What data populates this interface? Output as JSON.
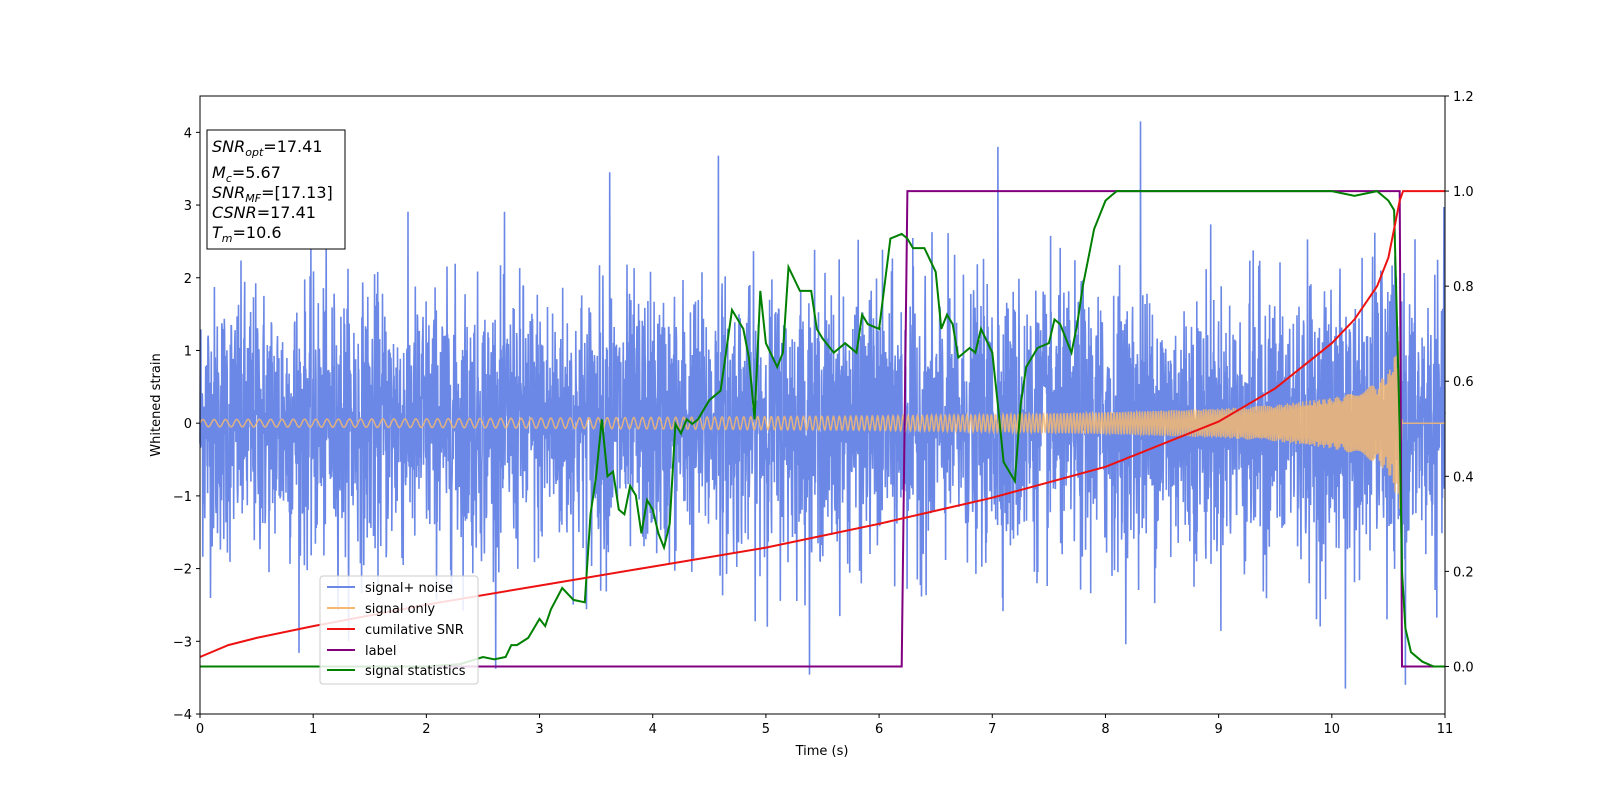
{
  "chart_data": {
    "type": "line",
    "xlabel": "Time (s)",
    "ylabel": "Whitened strain",
    "xlim": [
      0,
      11
    ],
    "ylim_left": [
      -4,
      4.5
    ],
    "ylim_right": [
      -0.1,
      1.2
    ],
    "xticks": [
      "0",
      "1",
      "2",
      "3",
      "4",
      "5",
      "6",
      "7",
      "8",
      "9",
      "10",
      "11"
    ],
    "yticks_left": [
      "−4",
      "−3",
      "−2",
      "−1",
      "0",
      "1",
      "2",
      "3",
      "4"
    ],
    "yticks_right": [
      "0.0",
      "0.2",
      "0.4",
      "0.6",
      "0.8",
      "1.0",
      "1.2"
    ],
    "grid": false,
    "legend_position": "lower-left",
    "info_box": {
      "snr_opt_label": "SNR",
      "snr_opt_sub": "opt",
      "snr_opt_value": "=17.41",
      "mc_label": "M",
      "mc_sub": "c",
      "mc_value": "=5.67",
      "snr_mf_label": "SNR",
      "snr_mf_sub": "MF",
      "snr_mf_value": "=[17.13]",
      "csnr_label": "CSNR",
      "csnr_value": "=17.41",
      "tm_label": "T",
      "tm_sub": "m",
      "tm_value": "=10.6"
    },
    "series": [
      {
        "name": "signal+ noise",
        "axis": "left",
        "color": "#6b88e6",
        "description": "whitened noise with amplitude roughly ±1.3 (peaks to ±3.5), signal added",
        "noise_sigma": 0.9,
        "notable_peaks": [
          [
            8.31,
            4.15
          ],
          [
            10.12,
            -3.65
          ],
          [
            4.58,
            3.68
          ],
          [
            7.05,
            3.8
          ],
          [
            3.62,
            3.45
          ],
          [
            10.65,
            -3.6
          ]
        ]
      },
      {
        "name": "signal only",
        "axis": "left",
        "color": "#f5b971",
        "description": "chirp envelope growing to merger at ~10.6 s",
        "envelope": {
          "x": [
            0,
            2,
            4,
            6,
            7,
            8,
            9,
            9.5,
            10,
            10.2,
            10.4,
            10.5,
            10.55,
            10.6,
            10.62,
            11
          ],
          "amp": [
            0.05,
            0.06,
            0.08,
            0.1,
            0.12,
            0.15,
            0.2,
            0.25,
            0.35,
            0.42,
            0.55,
            0.7,
            0.9,
            1.2,
            0.0,
            0.0
          ]
        }
      },
      {
        "name": "cumilative SNR",
        "axis": "right",
        "color": "#ee1111",
        "x": [
          0,
          0.25,
          0.5,
          1,
          2,
          3,
          4,
          5,
          6,
          7,
          8,
          9,
          9.5,
          10,
          10.2,
          10.4,
          10.5,
          10.55,
          10.6,
          10.63,
          11
        ],
        "y": [
          0.02,
          0.045,
          0.06,
          0.085,
          0.13,
          0.17,
          0.21,
          0.25,
          0.3,
          0.355,
          0.42,
          0.515,
          0.585,
          0.68,
          0.73,
          0.8,
          0.86,
          0.92,
          0.98,
          1.0,
          1.0
        ]
      },
      {
        "name": "label",
        "axis": "right",
        "color": "#800080",
        "x": [
          0,
          6.2,
          6.25,
          10.6,
          10.62,
          11
        ],
        "y": [
          0,
          0,
          1,
          1,
          0,
          0
        ]
      },
      {
        "name": "signal statistics",
        "axis": "right",
        "color": "#008000",
        "x": [
          0,
          0.5,
          1,
          1.5,
          2,
          2.3,
          2.5,
          2.6,
          2.7,
          2.75,
          2.8,
          2.9,
          3.0,
          3.05,
          3.1,
          3.2,
          3.3,
          3.4,
          3.45,
          3.5,
          3.55,
          3.6,
          3.65,
          3.7,
          3.75,
          3.8,
          3.85,
          3.9,
          3.95,
          4.0,
          4.05,
          4.1,
          4.15,
          4.2,
          4.25,
          4.3,
          4.35,
          4.4,
          4.5,
          4.6,
          4.7,
          4.8,
          4.85,
          4.9,
          4.95,
          5.0,
          5.1,
          5.15,
          5.2,
          5.3,
          5.4,
          5.45,
          5.5,
          5.6,
          5.7,
          5.8,
          5.85,
          5.9,
          6.0,
          6.1,
          6.2,
          6.25,
          6.3,
          6.4,
          6.5,
          6.55,
          6.6,
          6.65,
          6.7,
          6.8,
          6.85,
          6.9,
          7.0,
          7.05,
          7.1,
          7.2,
          7.25,
          7.3,
          7.4,
          7.5,
          7.55,
          7.6,
          7.7,
          7.75,
          7.8,
          7.85,
          7.9,
          8.0,
          8.05,
          8.1,
          8.3,
          8.6,
          9.0,
          9.5,
          10.0,
          10.2,
          10.4,
          10.5,
          10.55,
          10.6,
          10.62,
          10.65,
          10.7,
          10.8,
          10.9,
          11.0
        ],
        "y": [
          0.0,
          0.0,
          0.0,
          0.0,
          0.0,
          0.005,
          0.02,
          0.015,
          0.02,
          0.045,
          0.045,
          0.06,
          0.1,
          0.085,
          0.12,
          0.165,
          0.14,
          0.135,
          0.32,
          0.4,
          0.52,
          0.4,
          0.41,
          0.33,
          0.32,
          0.38,
          0.36,
          0.28,
          0.35,
          0.33,
          0.28,
          0.25,
          0.3,
          0.51,
          0.49,
          0.52,
          0.51,
          0.52,
          0.56,
          0.58,
          0.75,
          0.71,
          0.65,
          0.52,
          0.79,
          0.68,
          0.63,
          0.66,
          0.84,
          0.79,
          0.79,
          0.71,
          0.69,
          0.66,
          0.68,
          0.66,
          0.74,
          0.72,
          0.71,
          0.9,
          0.91,
          0.9,
          0.88,
          0.88,
          0.83,
          0.71,
          0.74,
          0.72,
          0.65,
          0.67,
          0.66,
          0.71,
          0.66,
          0.55,
          0.43,
          0.39,
          0.55,
          0.63,
          0.67,
          0.68,
          0.73,
          0.72,
          0.66,
          0.72,
          0.8,
          0.86,
          0.92,
          0.98,
          0.99,
          1.0,
          1.0,
          1.0,
          1.0,
          1.0,
          1.0,
          0.99,
          1.0,
          0.98,
          0.96,
          0.5,
          0.2,
          0.08,
          0.03,
          0.01,
          0.0,
          0.0
        ]
      }
    ],
    "legend": [
      {
        "label": "signal+ noise",
        "color": "#6b88e6"
      },
      {
        "label": "signal only",
        "color": "#f5b971"
      },
      {
        "label": "cumilative SNR",
        "color": "#ee1111"
      },
      {
        "label": "label",
        "color": "#800080"
      },
      {
        "label": "signal statistics",
        "color": "#008000"
      }
    ]
  }
}
